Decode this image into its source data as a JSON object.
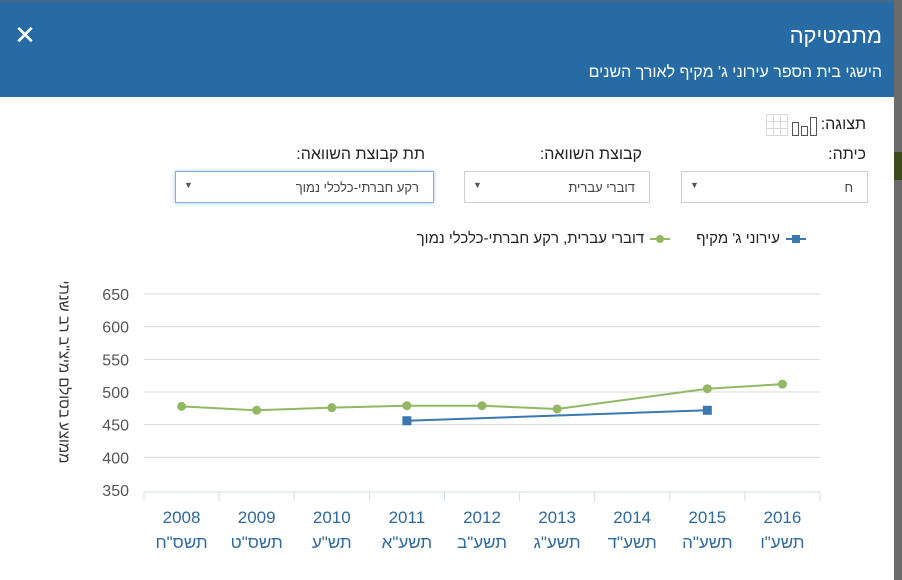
{
  "header": {
    "close_label": "✕",
    "title": "מתמטיקה",
    "subtitle": "הישגי בית הספר עירוני ג' מקיף לאורך השנים"
  },
  "controls": {
    "view_label": "תצוגה:",
    "view_icons": [
      "bar-chart-icon",
      "table-grid-icon"
    ],
    "grade_label": "כיתה:",
    "grade_value": "ח",
    "compare_group_label": "קבוצת השוואה:",
    "compare_group_value": "דוברי עברית",
    "sub_compare_group_label": "תת קבוצת השוואה:",
    "sub_compare_group_value": "רקע חברתי-כלכלי נמוך"
  },
  "colors": {
    "header_bg": "#266ba3",
    "school_series": "#3a78b0",
    "compare_series": "#92b863",
    "axis_text": "#2e6aa0",
    "gridline": "#d9d9d9"
  },
  "chart_data": {
    "type": "line",
    "title": "",
    "xlabel": "",
    "ylabel": "ממוצע בסולם מיצ\"ב רב שנתי",
    "ylim": [
      350,
      650
    ],
    "yticks": [
      350,
      400,
      450,
      500,
      550,
      600,
      650
    ],
    "grid": true,
    "legend_position": "top",
    "categories": [
      "2008",
      "2009",
      "2010",
      "2011",
      "2012",
      "2013",
      "2014",
      "2015",
      "2016"
    ],
    "categories_hebrew": [
      "תשס\"ח",
      "תשס\"ט",
      "תש\"ע",
      "תשע\"א",
      "תשע\"ב",
      "תשע\"ג",
      "תשע\"ד",
      "תשע\"ה",
      "תשע\"ו"
    ],
    "series": [
      {
        "name": "עירוני ג' מקיף",
        "marker": "square",
        "values": [
          null,
          null,
          null,
          456,
          null,
          null,
          null,
          472,
          null
        ]
      },
      {
        "name": "דוברי עברית, רקע חברתי-כלכלי נמוך",
        "marker": "circle",
        "values": [
          478,
          472,
          476,
          479,
          479,
          474,
          null,
          505,
          512
        ]
      }
    ]
  }
}
